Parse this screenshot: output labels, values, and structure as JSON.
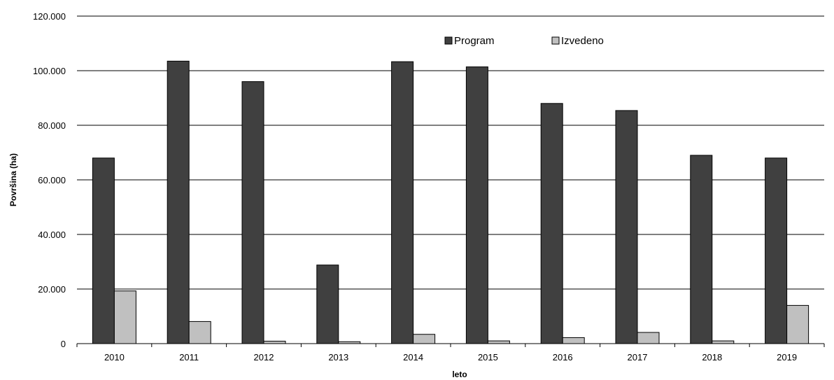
{
  "chart_data": {
    "type": "bar",
    "categories": [
      "2010",
      "2011",
      "2012",
      "2013",
      "2014",
      "2015",
      "2016",
      "2017",
      "2018",
      "2019"
    ],
    "series": [
      {
        "name": "Program",
        "color": "#404040",
        "values": [
          68000,
          103500,
          96000,
          28800,
          103300,
          101400,
          88000,
          85400,
          69000,
          68000
        ]
      },
      {
        "name": "Izvedeno",
        "color": "#c0c0c0",
        "values": [
          19300,
          8100,
          900,
          700,
          3400,
          1000,
          2200,
          4100,
          1000,
          14000
        ]
      }
    ],
    "xlabel": "leto",
    "ylabel": "Površina (ha)",
    "ylim": [
      0,
      120000
    ],
    "yticks": [
      0,
      20000,
      40000,
      60000,
      80000,
      100000,
      120000
    ],
    "ytick_labels": [
      "0",
      "20.000",
      "40.000",
      "60.000",
      "80.000",
      "100.000",
      "120.000"
    ],
    "grid": "horizontal",
    "legend_position": "top-right"
  }
}
